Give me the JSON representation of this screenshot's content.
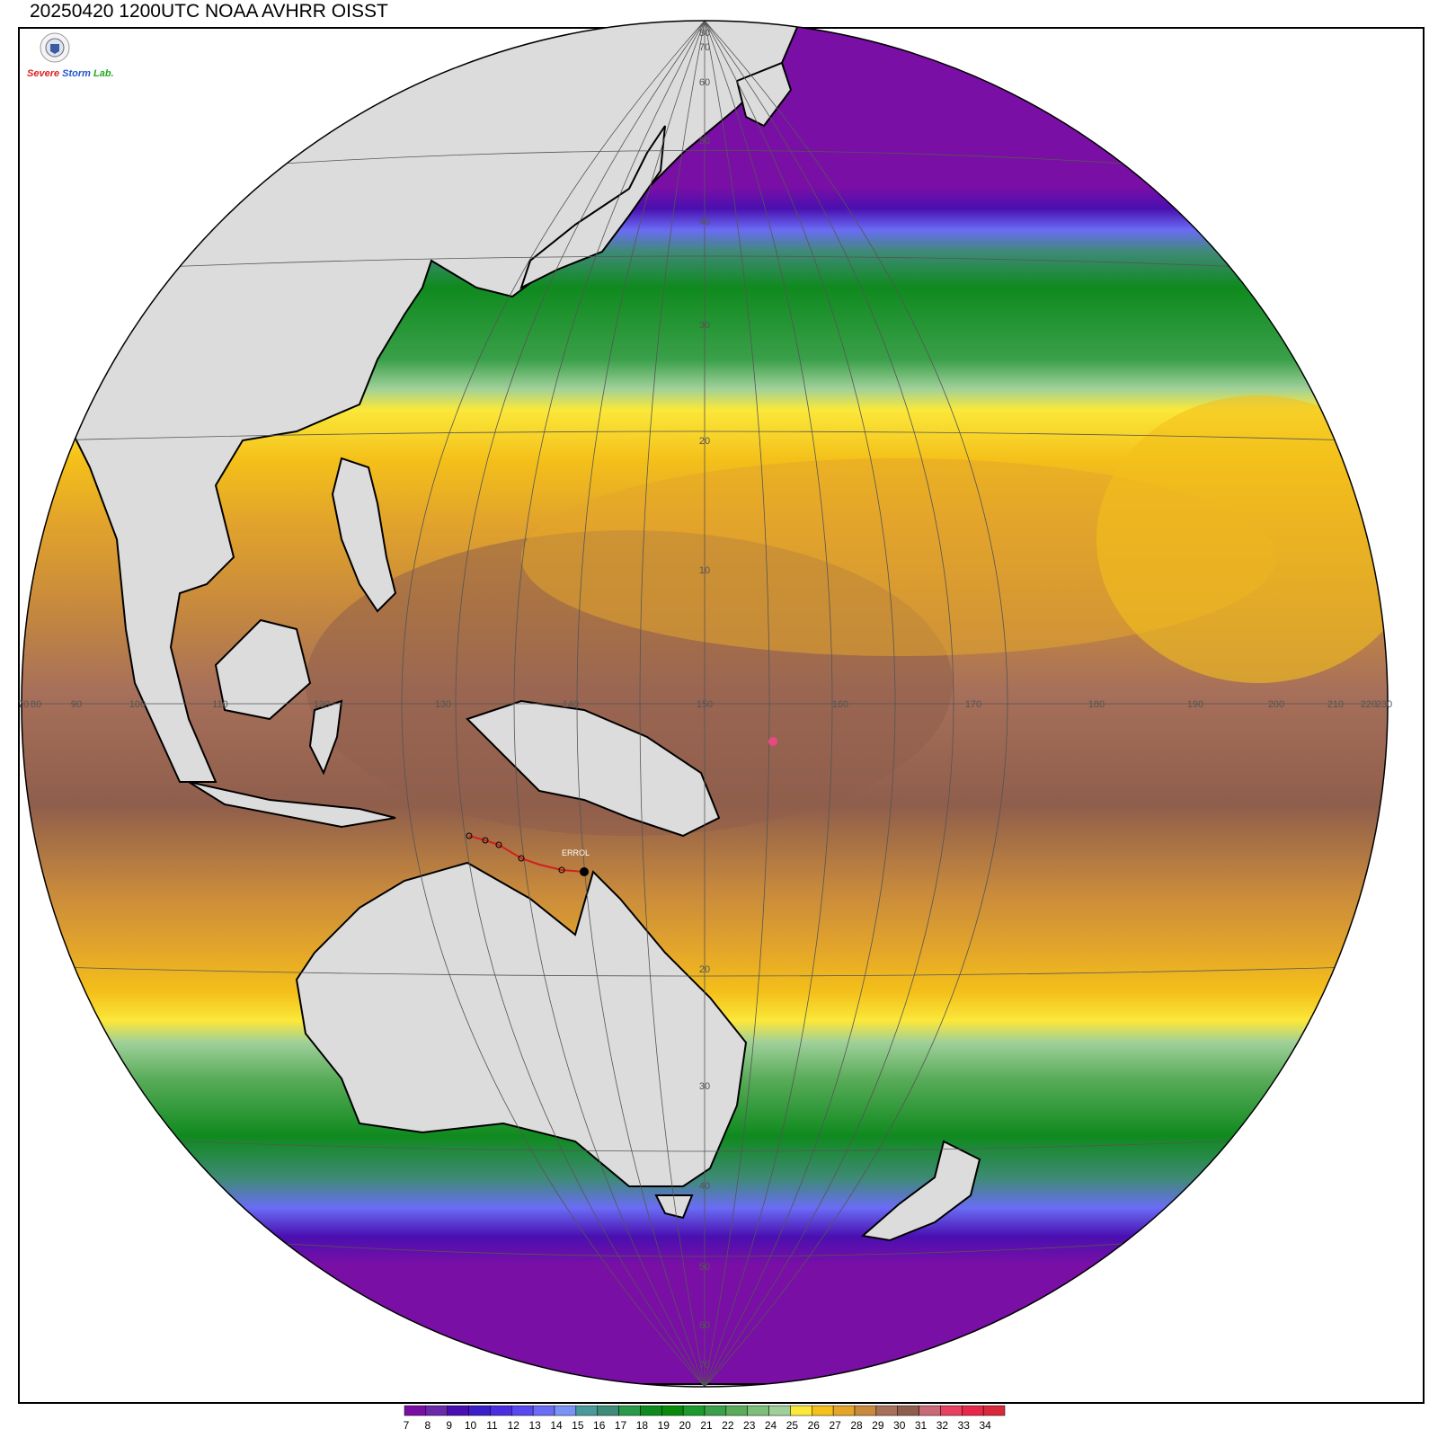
{
  "title": "20250420 1200UTC NOAA AVHRR OISST",
  "logo": {
    "text_parts": [
      "Severe",
      "Storm",
      "Lab."
    ]
  },
  "map": {
    "projection": "orthographic",
    "center_lon": 150,
    "center_lat": 0,
    "lat_labels": [
      "80",
      "70",
      "60",
      "50",
      "40",
      "30",
      "20",
      "10",
      "20",
      "30",
      "40",
      "50",
      "60",
      "70"
    ],
    "lon_labels": [
      "70",
      "80",
      "90",
      "100",
      "110",
      "120",
      "130",
      "140",
      "150",
      "160",
      "170",
      "180",
      "190",
      "200",
      "210",
      "220",
      "230"
    ],
    "storm_label": "ERROL"
  },
  "colorbar": {
    "values": [
      "7",
      "8",
      "9",
      "10",
      "11",
      "12",
      "13",
      "14",
      "15",
      "16",
      "17",
      "18",
      "19",
      "20",
      "21",
      "22",
      "23",
      "24",
      "25",
      "26",
      "27",
      "28",
      "29",
      "30",
      "31",
      "32",
      "33",
      "34"
    ],
    "colors": [
      "#7a0fa6",
      "#6b2aa8",
      "#4a0fb0",
      "#3c1fc8",
      "#4b2ee0",
      "#5a48f0",
      "#6a6cf5",
      "#7a94f5",
      "#4a9a9a",
      "#3f8a78",
      "#2a9a4a",
      "#0f8a1e",
      "#0a8a0a",
      "#1c9a2e",
      "#3aa04a",
      "#5aac5a",
      "#7dbf7a",
      "#9fd09a",
      "#fbe83a",
      "#f4c01a",
      "#e3a52a",
      "#c88a3c",
      "#a7705a",
      "#8f5e4c",
      "#c86a78",
      "#e84060",
      "#e8284a",
      "#d82a3a"
    ]
  },
  "legend_colors": {
    "land": "#dcdcdc",
    "coast": "#000000",
    "grid": "#555555",
    "storm_track": "#d02020"
  }
}
